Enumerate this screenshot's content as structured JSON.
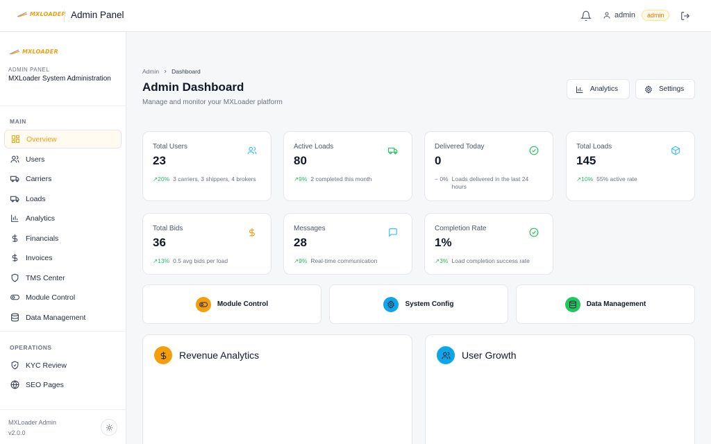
{
  "topbar": {
    "logo_text": "MXLOADER",
    "title": "Admin Panel",
    "user_name": "admin",
    "user_role": "admin"
  },
  "sidebar": {
    "logo_text": "MXLOADER",
    "admin_label": "ADMIN PANEL",
    "system_name": "MXLoader System Administration",
    "sections": [
      {
        "title": "MAIN",
        "items": [
          {
            "label": "Overview",
            "icon": "grid-icon",
            "active": true
          },
          {
            "label": "Users",
            "icon": "users-icon"
          },
          {
            "label": "Carriers",
            "icon": "truck-icon"
          },
          {
            "label": "Loads",
            "icon": "truck-icon"
          },
          {
            "label": "Analytics",
            "icon": "bar-chart-icon"
          },
          {
            "label": "Financials",
            "icon": "dollar-icon"
          },
          {
            "label": "Invoices",
            "icon": "dollar-icon"
          },
          {
            "label": "TMS Center",
            "icon": "shield-icon"
          },
          {
            "label": "Module Control",
            "icon": "toggle-icon"
          },
          {
            "label": "Data Management",
            "icon": "database-icon"
          }
        ]
      },
      {
        "title": "OPERATIONS",
        "items": [
          {
            "label": "KYC Review",
            "icon": "shield-check-icon"
          },
          {
            "label": "SEO Pages",
            "icon": "globe-icon"
          }
        ]
      }
    ],
    "footer_name": "MXLoader Admin",
    "footer_version": "v2.0.0"
  },
  "main": {
    "breadcrumb": [
      "Admin",
      "Dashboard"
    ],
    "title": "Admin Dashboard",
    "subtitle": "Manage and monitor your MXLoader platform",
    "header_buttons": [
      {
        "label": "Analytics",
        "icon": "bar-chart-icon"
      },
      {
        "label": "Settings",
        "icon": "gear-icon"
      }
    ],
    "stats": [
      {
        "label": "Total Users",
        "value": "23",
        "trend": "20%",
        "note": "3 carriers, 3 shippers, 4 brokers",
        "icon": "users-icon",
        "color": "#38bdf8"
      },
      {
        "label": "Active Loads",
        "value": "80",
        "trend": "9%",
        "note": "2 completed this month",
        "icon": "truck-icon",
        "color": "#22c55e"
      },
      {
        "label": "Delivered Today",
        "value": "0",
        "trend": "0%",
        "note": "Loads delivered in the last 24 hours",
        "icon": "check-circle-icon",
        "color": "#22c55e"
      },
      {
        "label": "Total Loads",
        "value": "145",
        "trend": "10%",
        "note": "55% active rate",
        "icon": "package-icon",
        "color": "#38bdf8"
      },
      {
        "label": "Total Bids",
        "value": "36",
        "trend": "13%",
        "note": "0.5 avg bids per load",
        "icon": "dollar-icon",
        "color": "#f59e0b"
      },
      {
        "label": "Messages",
        "value": "28",
        "trend": "9%",
        "note": "Real-time communication",
        "icon": "message-icon",
        "color": "#38bdf8"
      },
      {
        "label": "Completion Rate",
        "value": "1%",
        "trend": "3%",
        "note": "Load completion success rate",
        "icon": "check-circle-icon",
        "color": "#22c55e"
      }
    ],
    "quick_actions": [
      {
        "label": "Module Control",
        "icon": "toggle-icon",
        "color": "#f59e0b"
      },
      {
        "label": "System Config",
        "icon": "gear-icon",
        "color": "#0ea5e9"
      },
      {
        "label": "Data Management",
        "icon": "database-icon",
        "color": "#22c55e"
      }
    ],
    "panels": [
      {
        "title": "Revenue Analytics",
        "icon": "dollar-icon",
        "color": "#f59e0b"
      },
      {
        "title": "User Growth",
        "icon": "users-icon",
        "color": "#0ea5e9"
      }
    ]
  }
}
